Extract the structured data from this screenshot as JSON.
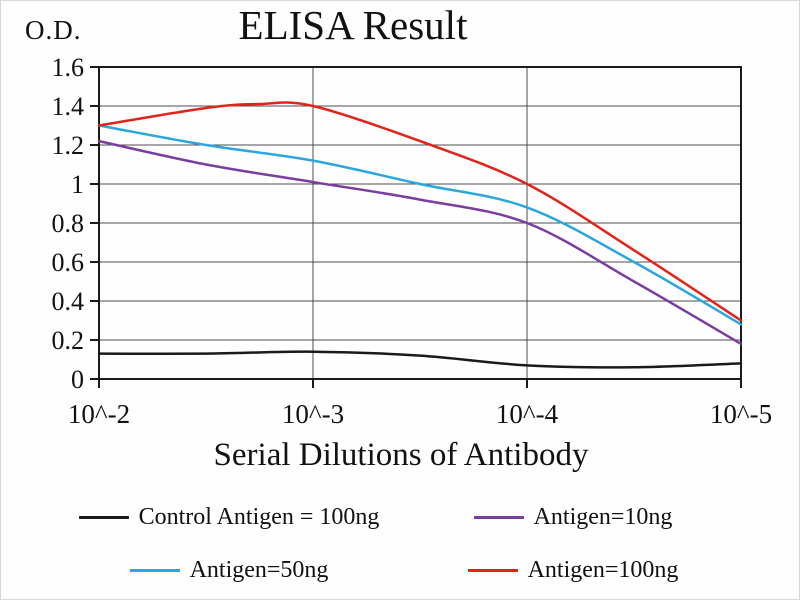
{
  "chart_data": {
    "type": "line",
    "title": "ELISA Result",
    "ylabel": "O.D.",
    "xlabel": "Serial Dilutions of Antibody",
    "x_tick_labels": [
      "10^-2",
      "10^-3",
      "10^-4",
      "10^-5"
    ],
    "y_tick_labels": [
      "0",
      "0.2",
      "0.4",
      "0.6",
      "0.8",
      "1",
      "1.2",
      "1.4",
      "1.6"
    ],
    "y_ticks": [
      0,
      0.2,
      0.4,
      0.6,
      0.8,
      1.0,
      1.2,
      1.4,
      1.6
    ],
    "ylim": [
      0,
      1.6
    ],
    "xlim": [
      0,
      3
    ],
    "x_unit": "tick-index (0 = 10^-2, 1 = 10^-3, 2 = 10^-4, 3 = 10^-5)",
    "grid": true,
    "legend_position": "bottom",
    "axis_color": "#1a1a1a",
    "grid_color": "#4d4d4d",
    "series": [
      {
        "name": "Control Antigen = 100ng",
        "color": "#1a1a1a",
        "points": [
          [
            0,
            0.13
          ],
          [
            0.5,
            0.13
          ],
          [
            1,
            0.14
          ],
          [
            1.5,
            0.12
          ],
          [
            2,
            0.07
          ],
          [
            2.5,
            0.06
          ],
          [
            3,
            0.08
          ]
        ]
      },
      {
        "name": "Antigen=10ng",
        "color": "#7a3da0",
        "points": [
          [
            0,
            1.22
          ],
          [
            0.5,
            1.1
          ],
          [
            1,
            1.01
          ],
          [
            1.5,
            0.92
          ],
          [
            2,
            0.8
          ],
          [
            2.5,
            0.5
          ],
          [
            3,
            0.18
          ]
        ]
      },
      {
        "name": "Antigen=50ng",
        "color": "#2ba6de",
        "points": [
          [
            0,
            1.3
          ],
          [
            0.5,
            1.2
          ],
          [
            1,
            1.12
          ],
          [
            1.5,
            1.0
          ],
          [
            2,
            0.88
          ],
          [
            2.5,
            0.6
          ],
          [
            3,
            0.28
          ]
        ]
      },
      {
        "name": "Antigen=100ng",
        "color": "#e2231a",
        "points": [
          [
            0,
            1.3
          ],
          [
            0.5,
            1.39
          ],
          [
            0.75,
            1.41
          ],
          [
            1,
            1.4
          ],
          [
            1.5,
            1.22
          ],
          [
            2,
            1.0
          ],
          [
            2.5,
            0.66
          ],
          [
            3,
            0.3
          ]
        ]
      }
    ]
  }
}
